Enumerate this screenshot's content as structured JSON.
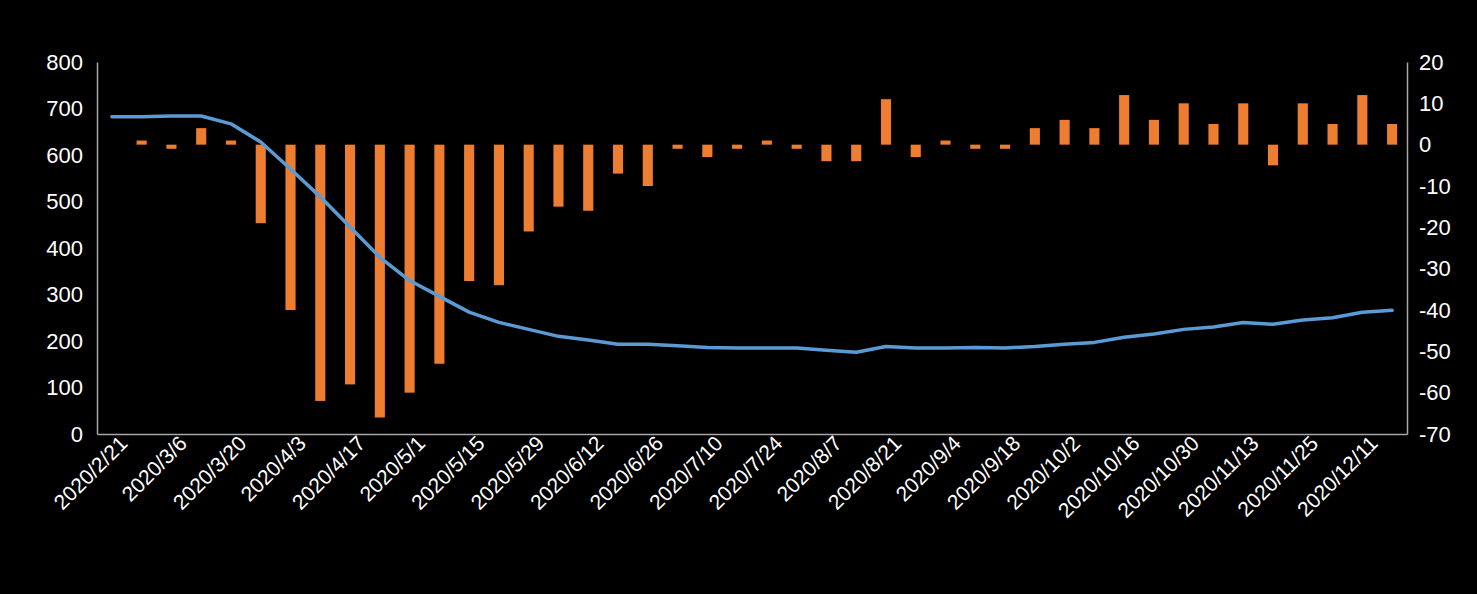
{
  "chart_data": {
    "type": "bar",
    "categories": [
      "2020/2/21",
      null,
      "2020/3/6",
      null,
      "2020/3/20",
      null,
      "2020/4/3",
      null,
      "2020/4/17",
      null,
      "2020/5/1",
      null,
      "2020/5/15",
      null,
      "2020/5/29",
      null,
      "2020/6/12",
      null,
      "2020/6/26",
      null,
      "2020/7/10",
      null,
      "2020/7/24",
      null,
      "2020/8/7",
      null,
      "2020/8/21",
      null,
      "2020/9/4",
      null,
      "2020/9/18",
      null,
      "2020/10/2",
      null,
      "2020/10/16",
      null,
      "2020/10/30",
      null,
      "2020/11/13",
      null,
      "2020/11/25",
      null,
      "2020/12/11",
      null
    ],
    "series": [
      {
        "type": "bar",
        "axis": "y2",
        "color": "#ed7d31",
        "values": [
          null,
          1,
          -1,
          4,
          1,
          -19,
          -40,
          -62,
          -58,
          -66,
          -60,
          -53,
          -33,
          -34,
          -21,
          -15,
          -16,
          -7,
          -10,
          -1,
          -3,
          -1,
          1,
          -1,
          -4,
          -4,
          11,
          -3,
          1,
          -1,
          -1,
          4,
          6,
          4,
          12,
          6,
          10,
          5,
          10,
          -5,
          10,
          5,
          12,
          5
        ]
      },
      {
        "type": "line",
        "color": "#5b9bd5",
        "values": [
          682,
          682,
          684,
          684,
          667,
          628,
          570,
          510,
          445,
          380,
          330,
          296,
          262,
          240,
          225,
          210,
          202,
          193,
          193,
          190,
          186,
          185,
          185,
          185,
          180,
          176,
          188,
          185,
          185,
          186,
          185,
          188,
          193,
          197,
          208,
          215,
          225,
          230,
          240,
          236,
          245,
          250,
          262,
          266
        ]
      }
    ],
    "ylim": [
      0,
      800
    ],
    "yticks": [
      0,
      100,
      200,
      300,
      400,
      500,
      600,
      700,
      800
    ],
    "y2lim": [
      -70,
      20
    ],
    "y2ticks": [
      -70,
      -60,
      -50,
      -40,
      -30,
      -20,
      -10,
      0,
      10,
      20
    ],
    "grid": false
  }
}
